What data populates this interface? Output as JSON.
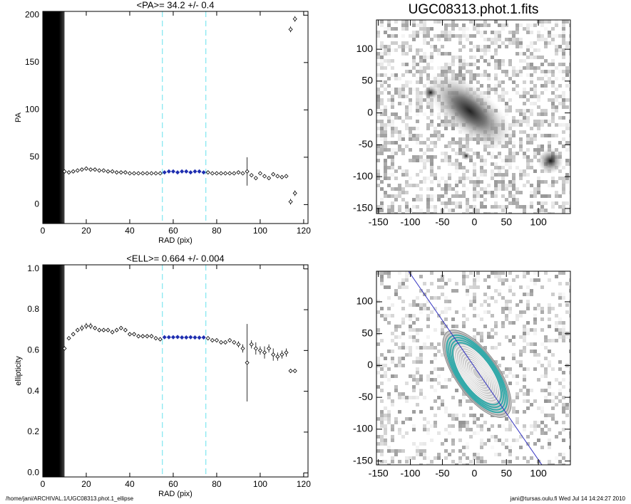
{
  "chart_data": [
    {
      "type": "scatter",
      "title": "<PA>=  34.2 +/-   0.4",
      "x_label": "RAD (pix)",
      "y_label": "PA",
      "xlim": [
        0,
        122
      ],
      "ylim": [
        -20,
        204
      ],
      "xticks": [
        0,
        20,
        40,
        60,
        80,
        100,
        120
      ],
      "yticks": [
        0,
        50,
        100,
        150,
        200
      ],
      "shaded_range": [
        0,
        10
      ],
      "vlines": [
        55,
        75
      ],
      "vline_color": "#7fe6f0",
      "series": [
        {
          "color": "#000000",
          "x": [
            10,
            12,
            14,
            16,
            18,
            20,
            22,
            24,
            26,
            28,
            30,
            32,
            34,
            36,
            38,
            40,
            42,
            44,
            46,
            48,
            50,
            52,
            54,
            76,
            78,
            80,
            82,
            84,
            86,
            88,
            90,
            92,
            94,
            96,
            98,
            100,
            102,
            104,
            106,
            108,
            110,
            112,
            114,
            114,
            116,
            116
          ],
          "values": [
            35,
            34,
            35,
            36,
            37,
            38,
            37,
            37,
            36,
            36,
            35,
            35,
            34,
            34,
            34,
            33,
            33,
            33,
            33,
            33,
            33,
            33,
            33,
            34,
            33,
            33,
            33,
            33,
            33,
            33,
            34,
            33,
            35,
            31,
            28,
            33,
            30,
            28,
            32,
            30,
            29,
            30,
            185,
            3,
            196,
            12
          ],
          "errors": [
            1,
            1,
            1,
            1,
            1,
            1,
            1,
            1,
            1,
            1,
            1,
            1,
            1,
            1,
            1,
            1,
            1,
            1,
            1,
            1,
            1,
            1,
            1,
            1,
            1,
            1,
            1,
            1,
            1,
            1,
            1,
            1,
            15,
            2,
            2,
            2,
            2,
            2,
            2,
            2,
            2,
            2,
            3,
            3,
            3,
            3
          ]
        },
        {
          "color": "#1f2fb0",
          "x": [
            56,
            58,
            60,
            62,
            64,
            66,
            68,
            70,
            72,
            74
          ],
          "values": [
            34,
            35,
            35,
            34,
            35,
            35,
            34,
            35,
            35,
            34
          ],
          "errors": [
            0.5,
            0.5,
            0.5,
            0.5,
            0.5,
            0.5,
            0.5,
            0.5,
            0.5,
            0.5
          ]
        }
      ]
    },
    {
      "type": "scatter",
      "title": "<ELL>= 0.664 +/-  0.004",
      "x_label": "RAD (pix)",
      "y_label": "ellipticity",
      "xlim": [
        0,
        122
      ],
      "ylim": [
        -0.02,
        1.02
      ],
      "xticks": [
        0,
        20,
        40,
        60,
        80,
        100,
        120
      ],
      "yticks": [
        {
          "value": 0,
          "label": "0.0"
        },
        0.2,
        0.4,
        0.6,
        0.8,
        {
          "value": 1,
          "label": "1.0"
        }
      ],
      "shaded_range": [
        0,
        10
      ],
      "vlines": [
        55,
        75
      ],
      "vline_color": "#7fe6f0",
      "series": [
        {
          "color": "#000000",
          "x": [
            10,
            12,
            14,
            16,
            18,
            20,
            22,
            24,
            26,
            28,
            30,
            32,
            34,
            36,
            38,
            40,
            42,
            44,
            46,
            48,
            50,
            52,
            54,
            76,
            78,
            80,
            82,
            84,
            86,
            88,
            90,
            92,
            94,
            96,
            98,
            100,
            102,
            104,
            106,
            108,
            110,
            112,
            114,
            116
          ],
          "values": [
            0.61,
            0.66,
            0.68,
            0.7,
            0.71,
            0.72,
            0.72,
            0.71,
            0.7,
            0.7,
            0.7,
            0.69,
            0.7,
            0.71,
            0.7,
            0.68,
            0.68,
            0.67,
            0.67,
            0.67,
            0.67,
            0.66,
            0.655,
            0.66,
            0.65,
            0.65,
            0.64,
            0.64,
            0.65,
            0.64,
            0.63,
            0.61,
            0.54,
            0.63,
            0.61,
            0.6,
            0.59,
            0.61,
            0.58,
            0.57,
            0.58,
            0.59,
            0.5,
            0.5
          ],
          "errors": [
            0.01,
            0.01,
            0.01,
            0.01,
            0.015,
            0.015,
            0.015,
            0.01,
            0.01,
            0.01,
            0.01,
            0.01,
            0.01,
            0.01,
            0.01,
            0.01,
            0.01,
            0.01,
            0.01,
            0.01,
            0.01,
            0.01,
            0.01,
            0.01,
            0.01,
            0.01,
            0.01,
            0.01,
            0.01,
            0.01,
            0.015,
            0.02,
            0.19,
            0.02,
            0.03,
            0.02,
            0.03,
            0.02,
            0.03,
            0.02,
            0.02,
            0.02,
            0.01,
            0.01
          ]
        },
        {
          "color": "#1f2fb0",
          "x": [
            56,
            58,
            60,
            62,
            64,
            66,
            68,
            70,
            72,
            74
          ],
          "values": [
            0.665,
            0.665,
            0.665,
            0.666,
            0.664,
            0.664,
            0.665,
            0.664,
            0.663,
            0.664
          ],
          "errors": [
            0.004,
            0.004,
            0.004,
            0.004,
            0.004,
            0.004,
            0.004,
            0.004,
            0.004,
            0.004
          ]
        }
      ]
    },
    {
      "type": "image",
      "title": "UGC08313.phot.1.fits",
      "xlim": [
        -153,
        150
      ],
      "ylim": [
        -158,
        146
      ],
      "xticks": [
        -150,
        -100,
        -50,
        0,
        50,
        100
      ],
      "yticks": [
        -150,
        -100,
        -50,
        0,
        50,
        100
      ]
    },
    {
      "type": "contour",
      "xlim": [
        -153,
        150
      ],
      "ylim": [
        -156,
        148
      ],
      "xticks": [
        -150,
        -100,
        -50,
        0,
        50,
        100
      ],
      "yticks": [
        -150,
        -100,
        -50,
        0,
        50,
        100
      ]
    }
  ],
  "footer": {
    "left": "/home/jani/ARCHIVAL.1/UGC08313.phot.1_ellipse",
    "right": "jani@tursas.oulu.fi  Wed Jul 14 14:24:27 2010"
  }
}
